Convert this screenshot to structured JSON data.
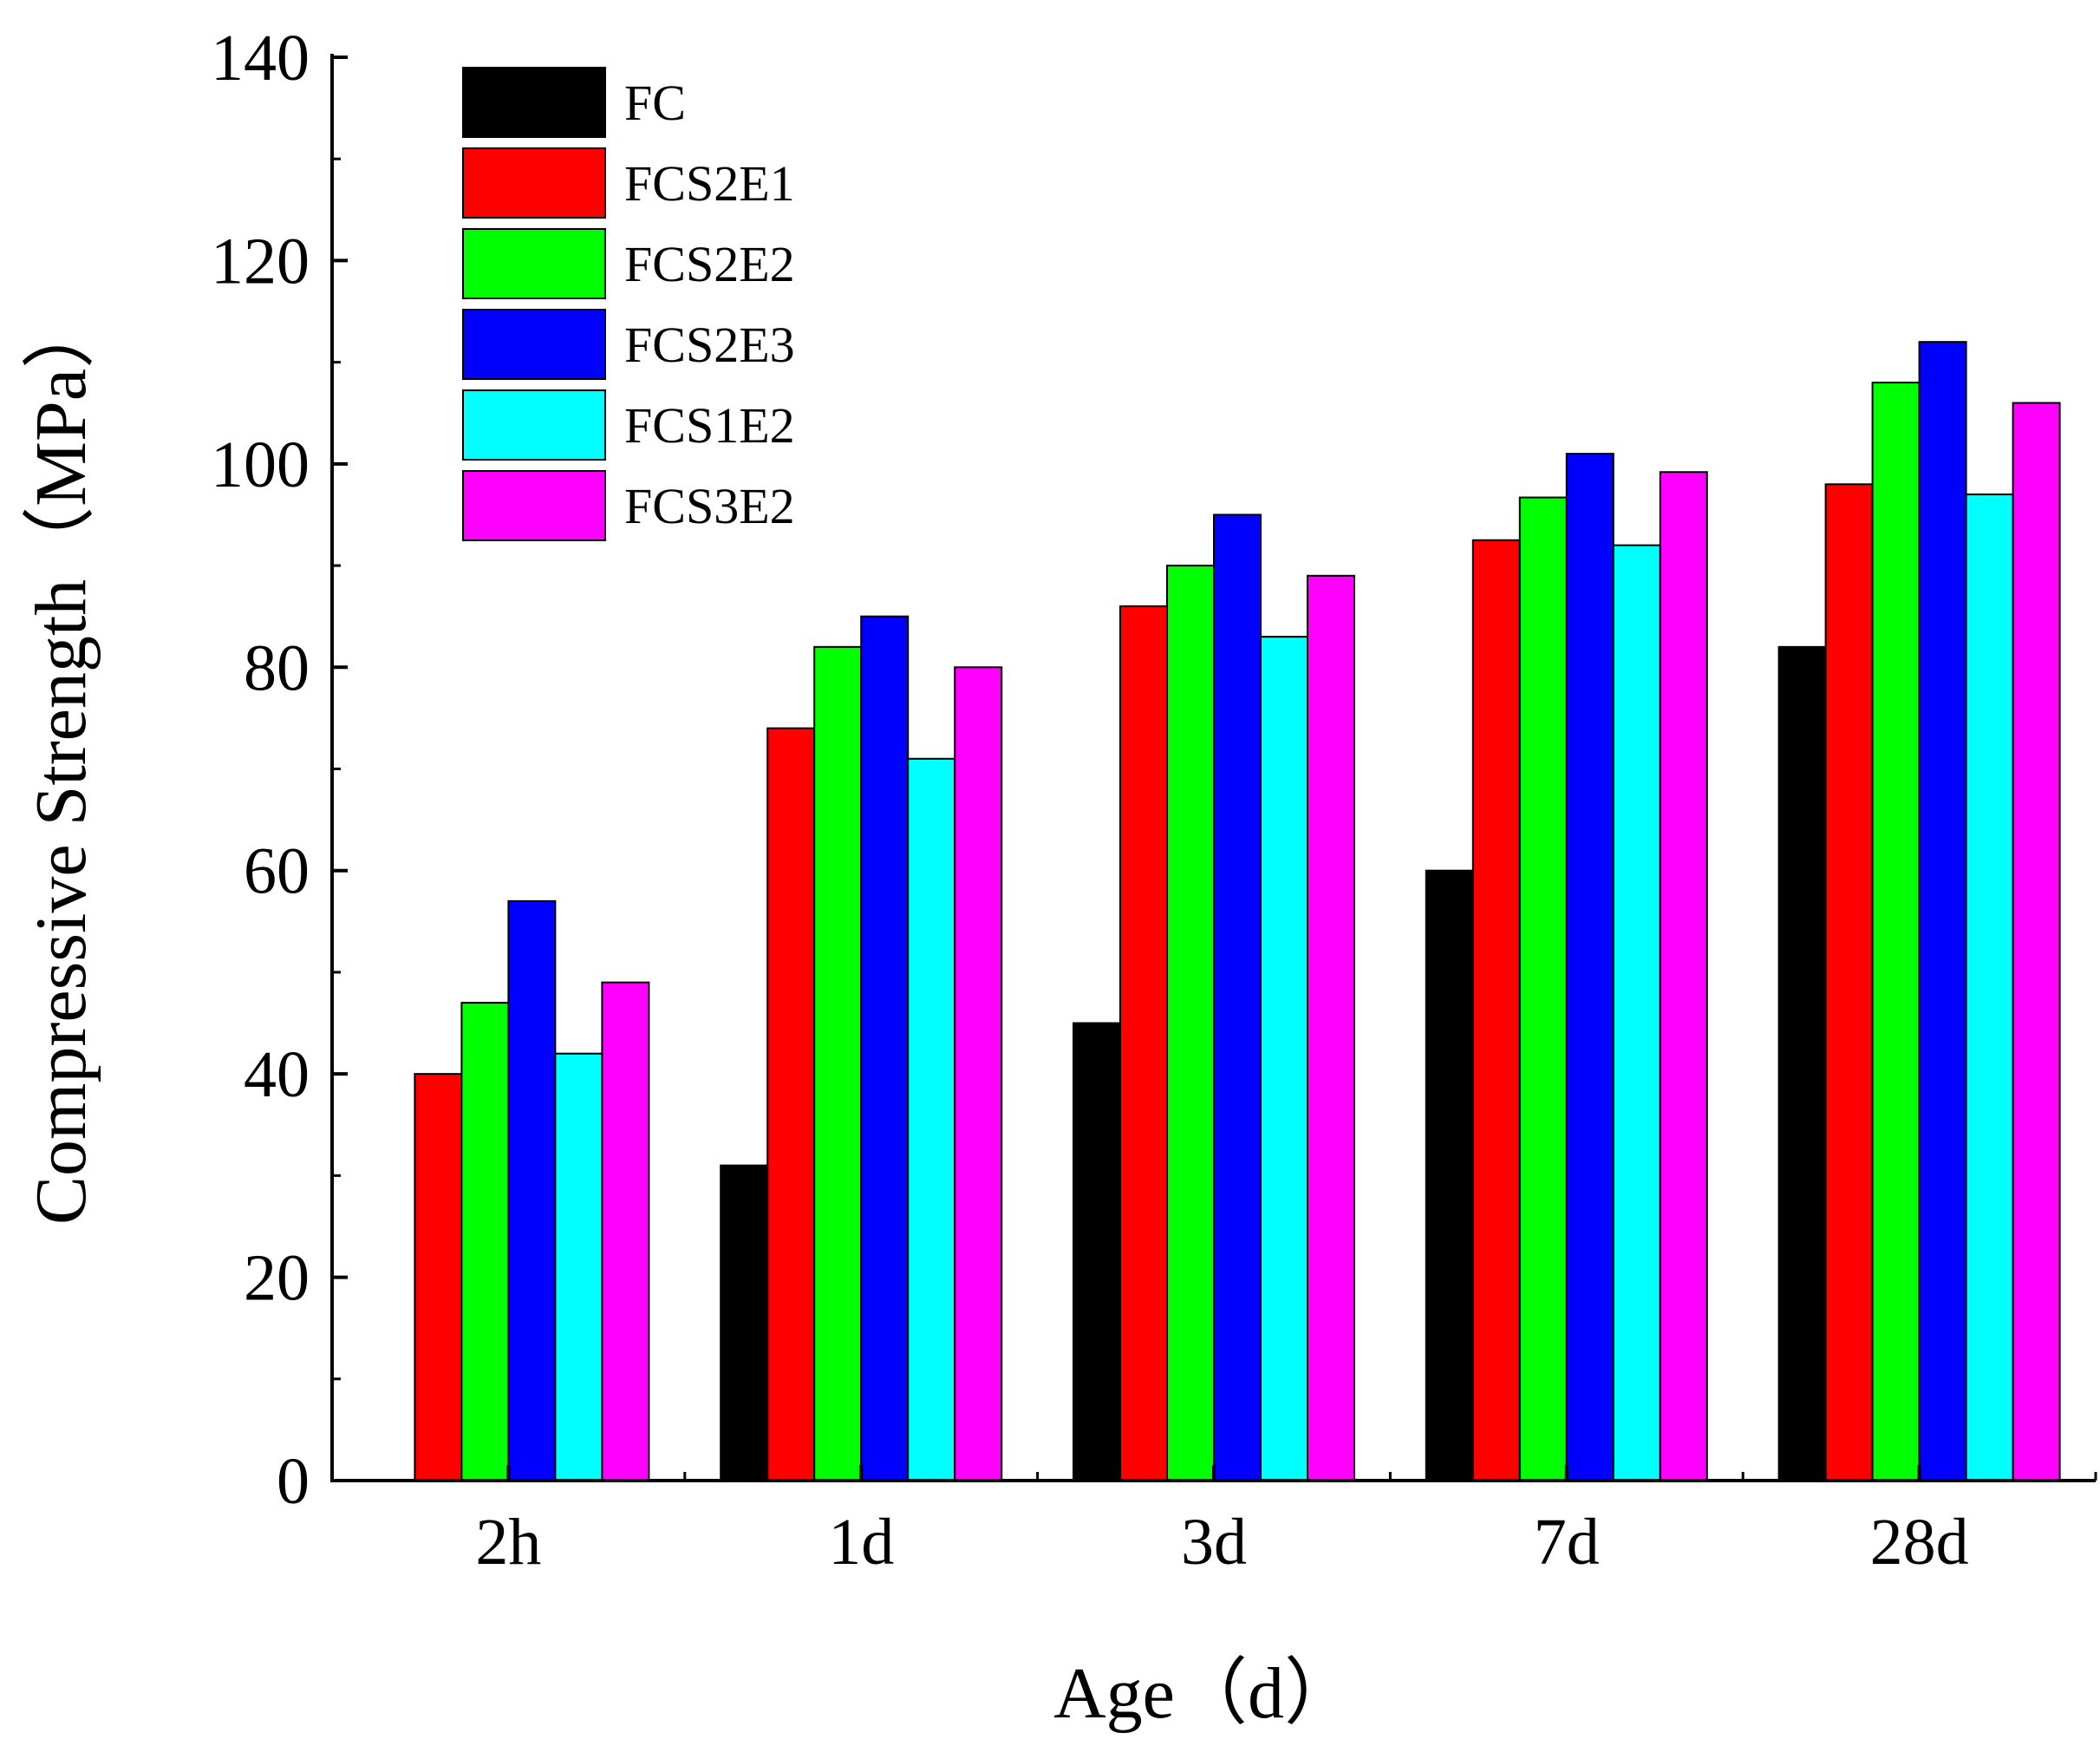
{
  "chart_data": {
    "type": "bar",
    "title": "",
    "xlabel": "Age（d）",
    "ylabel": "Compressive Strength（MPa）",
    "ylim": [
      0,
      140
    ],
    "yticks": [
      0,
      20,
      40,
      60,
      80,
      100,
      120,
      140
    ],
    "categories": [
      "2h",
      "1d",
      "3d",
      "7d",
      "28d"
    ],
    "grid": false,
    "legend_position": "top-left",
    "series": [
      {
        "name": "FC",
        "color": "#000000",
        "values": [
          0,
          31,
          45,
          60,
          82
        ]
      },
      {
        "name": "FCS2E1",
        "color": "#ff0000",
        "values": [
          40,
          74,
          86,
          92.5,
          98
        ]
      },
      {
        "name": "FCS2E2",
        "color": "#00ff00",
        "values": [
          47,
          82,
          90,
          96.7,
          108
        ]
      },
      {
        "name": "FCS2E3",
        "color": "#0000ff",
        "values": [
          57,
          85,
          95,
          101,
          112
        ]
      },
      {
        "name": "FCS1E2",
        "color": "#00ffff",
        "values": [
          42,
          71,
          83,
          92,
          97
        ]
      },
      {
        "name": "FCS3E2",
        "color": "#ff00ff",
        "values": [
          49,
          80,
          89,
          99.2,
          106
        ]
      }
    ]
  }
}
